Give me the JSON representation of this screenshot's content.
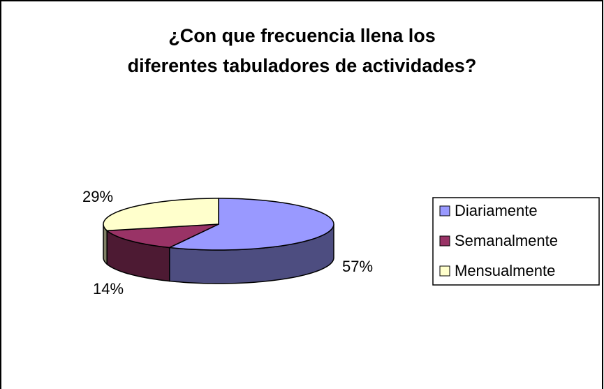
{
  "chart_data": {
    "type": "pie",
    "title": "¿Con que frecuencia llena los\ndiferentes tabuladores de actividades?",
    "categories": [
      "Diariamente",
      "Semanalmente",
      "Mensualmente"
    ],
    "values": [
      57,
      14,
      29
    ],
    "value_labels": [
      "57%",
      "14%",
      "29%"
    ],
    "colors": [
      "#9999ff",
      "#993366",
      "#ffffcc"
    ],
    "legend": "right"
  }
}
